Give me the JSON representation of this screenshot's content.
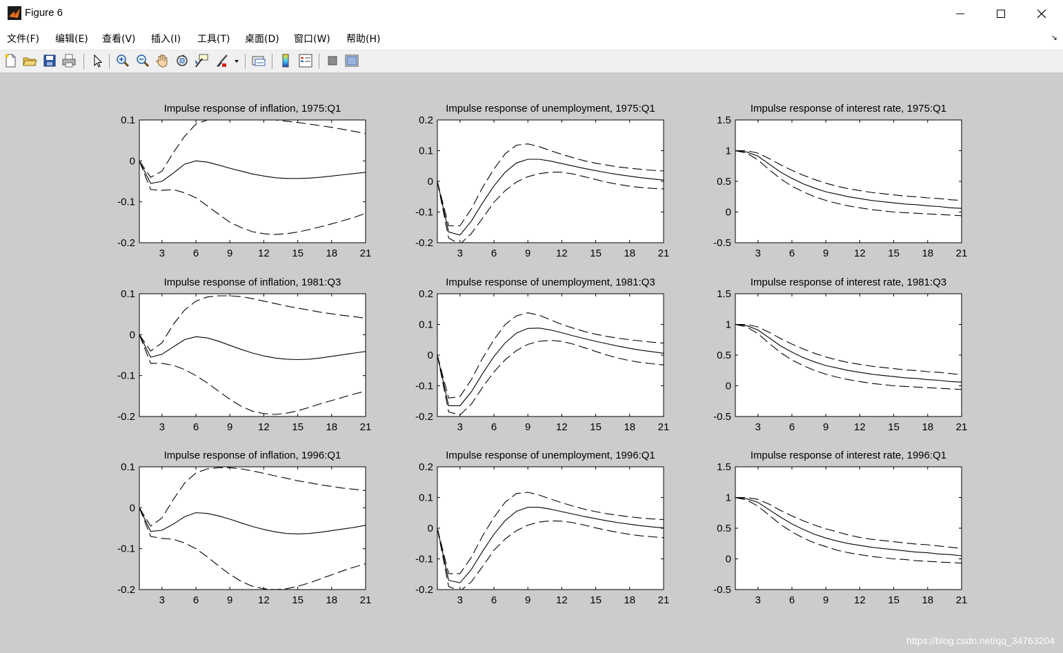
{
  "window": {
    "title": "Figure 6",
    "controls": {
      "minimize": "minimize",
      "maximize": "maximize",
      "close": "close"
    }
  },
  "menu": [
    "文件(F)",
    "编辑(E)",
    "查看(V)",
    "插入(I)",
    "工具(T)",
    "桌面(D)",
    "窗口(W)",
    "帮助(H)"
  ],
  "toolbar": {
    "icons": [
      "new-figure-icon",
      "open-file-icon",
      "save-icon",
      "print-icon",
      "edit-plot-icon",
      "zoom-in-icon",
      "zoom-out-icon",
      "pan-icon",
      "rotate-3d-icon",
      "data-cursor-icon",
      "brush-icon",
      "brush-dropdown-icon",
      "link-plot-icon",
      "insert-colorbar-icon",
      "insert-legend-icon",
      "hide-plot-tools-icon",
      "show-plot-tools-icon"
    ]
  },
  "watermark": "https://blog.csdn.net/qq_34763204",
  "chart_data": [
    {
      "type": "line",
      "title": "Impulse response of inflation, 1975:Q1",
      "xlim": [
        1,
        21
      ],
      "ylim": [
        -0.2,
        0.1
      ],
      "xticks": [
        3,
        6,
        9,
        12,
        15,
        18,
        21
      ],
      "yticks": [
        "0.1",
        "0",
        "-0.1",
        "-0.2"
      ],
      "x": [
        1,
        2,
        3,
        4,
        5,
        6,
        7,
        8,
        9,
        10,
        11,
        12,
        13,
        14,
        15,
        16,
        17,
        18,
        19,
        20,
        21
      ],
      "series": [
        {
          "style": "solid",
          "values": [
            0,
            -0.055,
            -0.05,
            -0.03,
            -0.008,
            0.0,
            -0.003,
            -0.01,
            -0.018,
            -0.025,
            -0.032,
            -0.037,
            -0.041,
            -0.043,
            -0.043,
            -0.042,
            -0.04,
            -0.037,
            -0.034,
            -0.031,
            -0.028
          ]
        },
        {
          "style": "dashed",
          "values": [
            0,
            -0.04,
            -0.025,
            0.02,
            0.06,
            0.09,
            0.1,
            0.11,
            0.11,
            0.108,
            0.105,
            0.102,
            0.1,
            0.097,
            0.094,
            0.09,
            0.086,
            0.082,
            0.077,
            0.072,
            0.067
          ]
        },
        {
          "style": "dashed",
          "values": [
            0,
            -0.07,
            -0.072,
            -0.07,
            -0.078,
            -0.09,
            -0.11,
            -0.13,
            -0.15,
            -0.163,
            -0.173,
            -0.178,
            -0.18,
            -0.178,
            -0.174,
            -0.168,
            -0.161,
            -0.154,
            -0.146,
            -0.138,
            -0.128
          ]
        }
      ]
    },
    {
      "type": "line",
      "title": "Impulse response of unemployment, 1975:Q1",
      "xlim": [
        1,
        21
      ],
      "ylim": [
        -0.2,
        0.2
      ],
      "xticks": [
        3,
        6,
        9,
        12,
        15,
        18,
        21
      ],
      "yticks": [
        "0.2",
        "0.1",
        "0",
        "-0.1",
        "-0.2"
      ],
      "x": [
        1,
        2,
        3,
        4,
        5,
        6,
        7,
        8,
        9,
        10,
        11,
        12,
        13,
        14,
        15,
        16,
        17,
        18,
        19,
        20,
        21
      ],
      "series": [
        {
          "style": "solid",
          "values": [
            0,
            -0.165,
            -0.175,
            -0.13,
            -0.07,
            -0.015,
            0.03,
            0.06,
            0.072,
            0.072,
            0.066,
            0.058,
            0.05,
            0.042,
            0.035,
            0.028,
            0.022,
            0.017,
            0.012,
            0.008,
            0.004
          ]
        },
        {
          "style": "dashed",
          "values": [
            0,
            -0.145,
            -0.145,
            -0.09,
            -0.02,
            0.04,
            0.09,
            0.118,
            0.122,
            0.113,
            0.1,
            0.088,
            0.077,
            0.067,
            0.059,
            0.053,
            0.047,
            0.043,
            0.039,
            0.036,
            0.034
          ]
        },
        {
          "style": "dashed",
          "values": [
            0,
            -0.185,
            -0.205,
            -0.17,
            -0.12,
            -0.068,
            -0.03,
            -0.002,
            0.015,
            0.025,
            0.03,
            0.03,
            0.024,
            0.015,
            0.006,
            -0.003,
            -0.01,
            -0.016,
            -0.02,
            -0.023,
            -0.025
          ]
        }
      ]
    },
    {
      "type": "line",
      "title": "Impulse response of interest rate, 1975:Q1",
      "xlim": [
        1,
        21
      ],
      "ylim": [
        -0.5,
        1.5
      ],
      "xticks": [
        3,
        6,
        9,
        12,
        15,
        18,
        21
      ],
      "yticks": [
        "1.5",
        "1",
        "0.5",
        "0",
        "-0.5"
      ],
      "x": [
        1,
        2,
        3,
        4,
        5,
        6,
        7,
        8,
        9,
        10,
        11,
        12,
        13,
        14,
        15,
        16,
        17,
        18,
        19,
        20,
        21
      ],
      "series": [
        {
          "style": "solid",
          "values": [
            1.0,
            0.98,
            0.91,
            0.78,
            0.65,
            0.55,
            0.46,
            0.39,
            0.33,
            0.29,
            0.25,
            0.22,
            0.19,
            0.17,
            0.15,
            0.13,
            0.12,
            0.1,
            0.09,
            0.07,
            0.06
          ]
        },
        {
          "style": "dashed",
          "values": [
            1.0,
            1.0,
            0.96,
            0.87,
            0.77,
            0.68,
            0.6,
            0.53,
            0.47,
            0.42,
            0.38,
            0.35,
            0.32,
            0.3,
            0.28,
            0.26,
            0.25,
            0.23,
            0.22,
            0.2,
            0.19
          ]
        },
        {
          "style": "dashed",
          "values": [
            1.0,
            0.96,
            0.85,
            0.69,
            0.54,
            0.42,
            0.33,
            0.25,
            0.19,
            0.14,
            0.1,
            0.07,
            0.04,
            0.02,
            0.0,
            -0.01,
            -0.02,
            -0.03,
            -0.04,
            -0.05,
            -0.06
          ]
        }
      ]
    },
    {
      "type": "line",
      "title": "Impulse response of inflation, 1981:Q3",
      "xlim": [
        1,
        21
      ],
      "ylim": [
        -0.2,
        0.1
      ],
      "xticks": [
        3,
        6,
        9,
        12,
        15,
        18,
        21
      ],
      "yticks": [
        "0.1",
        "0",
        "-0.1",
        "-0.2"
      ],
      "x": [
        1,
        2,
        3,
        4,
        5,
        6,
        7,
        8,
        9,
        10,
        11,
        12,
        13,
        14,
        15,
        16,
        17,
        18,
        19,
        20,
        21
      ],
      "series": [
        {
          "style": "solid",
          "values": [
            0,
            -0.055,
            -0.048,
            -0.03,
            -0.012,
            -0.005,
            -0.008,
            -0.016,
            -0.026,
            -0.036,
            -0.045,
            -0.052,
            -0.057,
            -0.06,
            -0.061,
            -0.06,
            -0.057,
            -0.053,
            -0.049,
            -0.045,
            -0.041
          ]
        },
        {
          "style": "dashed",
          "values": [
            0,
            -0.04,
            -0.02,
            0.025,
            0.06,
            0.082,
            0.092,
            0.095,
            0.095,
            0.093,
            0.088,
            0.082,
            0.076,
            0.07,
            0.065,
            0.06,
            0.055,
            0.051,
            0.047,
            0.044,
            0.04
          ]
        },
        {
          "style": "dashed",
          "values": [
            0,
            -0.07,
            -0.07,
            -0.075,
            -0.085,
            -0.1,
            -0.118,
            -0.138,
            -0.158,
            -0.175,
            -0.187,
            -0.193,
            -0.195,
            -0.192,
            -0.186,
            -0.178,
            -0.169,
            -0.161,
            -0.153,
            -0.145,
            -0.138
          ]
        }
      ]
    },
    {
      "type": "line",
      "title": "Impulse response of unemployment, 1981:Q3",
      "xlim": [
        1,
        21
      ],
      "ylim": [
        -0.2,
        0.2
      ],
      "xticks": [
        3,
        6,
        9,
        12,
        15,
        18,
        21
      ],
      "yticks": [
        "0.2",
        "0.1",
        "0",
        "-0.1",
        "-0.2"
      ],
      "x": [
        1,
        2,
        3,
        4,
        5,
        6,
        7,
        8,
        9,
        10,
        11,
        12,
        13,
        14,
        15,
        16,
        17,
        18,
        19,
        20,
        21
      ],
      "series": [
        {
          "style": "solid",
          "values": [
            0,
            -0.165,
            -0.165,
            -0.12,
            -0.06,
            -0.005,
            0.04,
            0.072,
            0.087,
            0.088,
            0.082,
            0.073,
            0.063,
            0.054,
            0.045,
            0.037,
            0.029,
            0.022,
            0.016,
            0.011,
            0.006
          ]
        },
        {
          "style": "dashed",
          "values": [
            0,
            -0.14,
            -0.135,
            -0.08,
            -0.01,
            0.05,
            0.1,
            0.128,
            0.138,
            0.13,
            0.115,
            0.1,
            0.088,
            0.077,
            0.068,
            0.061,
            0.055,
            0.05,
            0.046,
            0.042,
            0.039
          ]
        },
        {
          "style": "dashed",
          "values": [
            0,
            -0.185,
            -0.195,
            -0.16,
            -0.105,
            -0.055,
            -0.015,
            0.015,
            0.035,
            0.045,
            0.048,
            0.045,
            0.036,
            0.024,
            0.012,
            0.0,
            -0.01,
            -0.018,
            -0.024,
            -0.028,
            -0.032
          ]
        }
      ]
    },
    {
      "type": "line",
      "title": "Impulse response of interest rate, 1981:Q3",
      "xlim": [
        1,
        21
      ],
      "ylim": [
        -0.5,
        1.5
      ],
      "xticks": [
        3,
        6,
        9,
        12,
        15,
        18,
        21
      ],
      "yticks": [
        "1.5",
        "1",
        "0.5",
        "0",
        "-0.5"
      ],
      "x": [
        1,
        2,
        3,
        4,
        5,
        6,
        7,
        8,
        9,
        10,
        11,
        12,
        13,
        14,
        15,
        16,
        17,
        18,
        19,
        20,
        21
      ],
      "series": [
        {
          "style": "solid",
          "values": [
            1.0,
            0.98,
            0.91,
            0.78,
            0.65,
            0.55,
            0.46,
            0.39,
            0.33,
            0.29,
            0.25,
            0.22,
            0.19,
            0.17,
            0.15,
            0.13,
            0.12,
            0.1,
            0.09,
            0.07,
            0.06
          ]
        },
        {
          "style": "dashed",
          "values": [
            1.0,
            1.0,
            0.96,
            0.87,
            0.77,
            0.68,
            0.6,
            0.53,
            0.47,
            0.42,
            0.38,
            0.35,
            0.32,
            0.3,
            0.28,
            0.26,
            0.25,
            0.23,
            0.22,
            0.2,
            0.18
          ]
        },
        {
          "style": "dashed",
          "values": [
            1.0,
            0.96,
            0.85,
            0.69,
            0.54,
            0.42,
            0.33,
            0.25,
            0.19,
            0.14,
            0.1,
            0.07,
            0.04,
            0.02,
            0.0,
            -0.01,
            -0.02,
            -0.03,
            -0.04,
            -0.05,
            -0.06
          ]
        }
      ]
    },
    {
      "type": "line",
      "title": "Impulse response of inflation, 1996:Q1",
      "xlim": [
        1,
        21
      ],
      "ylim": [
        -0.2,
        0.1
      ],
      "xticks": [
        3,
        6,
        9,
        12,
        15,
        18,
        21
      ],
      "yticks": [
        "0.1",
        "0",
        "-0.1",
        "-0.2"
      ],
      "x": [
        1,
        2,
        3,
        4,
        5,
        6,
        7,
        8,
        9,
        10,
        11,
        12,
        13,
        14,
        15,
        16,
        17,
        18,
        19,
        20,
        21
      ],
      "series": [
        {
          "style": "solid",
          "values": [
            0,
            -0.058,
            -0.055,
            -0.04,
            -0.022,
            -0.012,
            -0.014,
            -0.02,
            -0.028,
            -0.037,
            -0.046,
            -0.053,
            -0.059,
            -0.063,
            -0.064,
            -0.063,
            -0.06,
            -0.056,
            -0.052,
            -0.048,
            -0.043
          ]
        },
        {
          "style": "dashed",
          "values": [
            0,
            -0.045,
            -0.025,
            0.02,
            0.06,
            0.085,
            0.095,
            0.098,
            0.098,
            0.095,
            0.09,
            0.084,
            0.078,
            0.072,
            0.066,
            0.061,
            0.056,
            0.052,
            0.048,
            0.045,
            0.042
          ]
        },
        {
          "style": "dashed",
          "values": [
            0,
            -0.07,
            -0.075,
            -0.077,
            -0.086,
            -0.1,
            -0.12,
            -0.142,
            -0.163,
            -0.18,
            -0.192,
            -0.198,
            -0.2,
            -0.198,
            -0.192,
            -0.184,
            -0.174,
            -0.164,
            -0.154,
            -0.145,
            -0.137
          ]
        }
      ]
    },
    {
      "type": "line",
      "title": "Impulse response of unemployment, 1996:Q1",
      "xlim": [
        1,
        21
      ],
      "ylim": [
        -0.2,
        0.2
      ],
      "xticks": [
        3,
        6,
        9,
        12,
        15,
        18,
        21
      ],
      "yticks": [
        "0.2",
        "0.1",
        "0",
        "-0.1",
        "-0.2"
      ],
      "x": [
        1,
        2,
        3,
        4,
        5,
        6,
        7,
        8,
        9,
        10,
        11,
        12,
        13,
        14,
        15,
        16,
        17,
        18,
        19,
        20,
        21
      ],
      "series": [
        {
          "style": "solid",
          "values": [
            0,
            -0.17,
            -0.178,
            -0.135,
            -0.075,
            -0.02,
            0.025,
            0.055,
            0.068,
            0.068,
            0.062,
            0.054,
            0.046,
            0.038,
            0.031,
            0.024,
            0.018,
            0.013,
            0.008,
            0.004,
            0.001
          ]
        },
        {
          "style": "dashed",
          "values": [
            0,
            -0.148,
            -0.148,
            -0.095,
            -0.025,
            0.035,
            0.085,
            0.113,
            0.117,
            0.108,
            0.095,
            0.083,
            0.072,
            0.062,
            0.054,
            0.047,
            0.042,
            0.037,
            0.033,
            0.03,
            0.028
          ]
        },
        {
          "style": "dashed",
          "values": [
            0,
            -0.19,
            -0.205,
            -0.175,
            -0.125,
            -0.072,
            -0.035,
            -0.008,
            0.01,
            0.02,
            0.024,
            0.023,
            0.018,
            0.01,
            0.001,
            -0.007,
            -0.014,
            -0.02,
            -0.025,
            -0.028,
            -0.031
          ]
        }
      ]
    },
    {
      "type": "line",
      "title": "Impulse response of interest rate, 1996:Q1",
      "xlim": [
        1,
        21
      ],
      "ylim": [
        -0.5,
        1.5
      ],
      "xticks": [
        3,
        6,
        9,
        12,
        15,
        18,
        21
      ],
      "yticks": [
        "1.5",
        "1",
        "0.5",
        "0",
        "-0.5"
      ],
      "x": [
        1,
        2,
        3,
        4,
        5,
        6,
        7,
        8,
        9,
        10,
        11,
        12,
        13,
        14,
        15,
        16,
        17,
        18,
        19,
        20,
        21
      ],
      "series": [
        {
          "style": "solid",
          "values": [
            1.0,
            0.98,
            0.92,
            0.8,
            0.68,
            0.57,
            0.48,
            0.4,
            0.34,
            0.29,
            0.25,
            0.22,
            0.19,
            0.17,
            0.15,
            0.13,
            0.11,
            0.1,
            0.08,
            0.07,
            0.05
          ]
        },
        {
          "style": "dashed",
          "values": [
            1.0,
            1.0,
            0.97,
            0.89,
            0.79,
            0.7,
            0.62,
            0.55,
            0.49,
            0.44,
            0.39,
            0.35,
            0.32,
            0.3,
            0.28,
            0.26,
            0.24,
            0.23,
            0.21,
            0.19,
            0.17
          ]
        },
        {
          "style": "dashed",
          "values": [
            1.0,
            0.96,
            0.86,
            0.71,
            0.56,
            0.44,
            0.34,
            0.26,
            0.2,
            0.14,
            0.1,
            0.07,
            0.04,
            0.02,
            0.0,
            -0.01,
            -0.03,
            -0.04,
            -0.05,
            -0.06,
            -0.07
          ]
        }
      ]
    }
  ]
}
